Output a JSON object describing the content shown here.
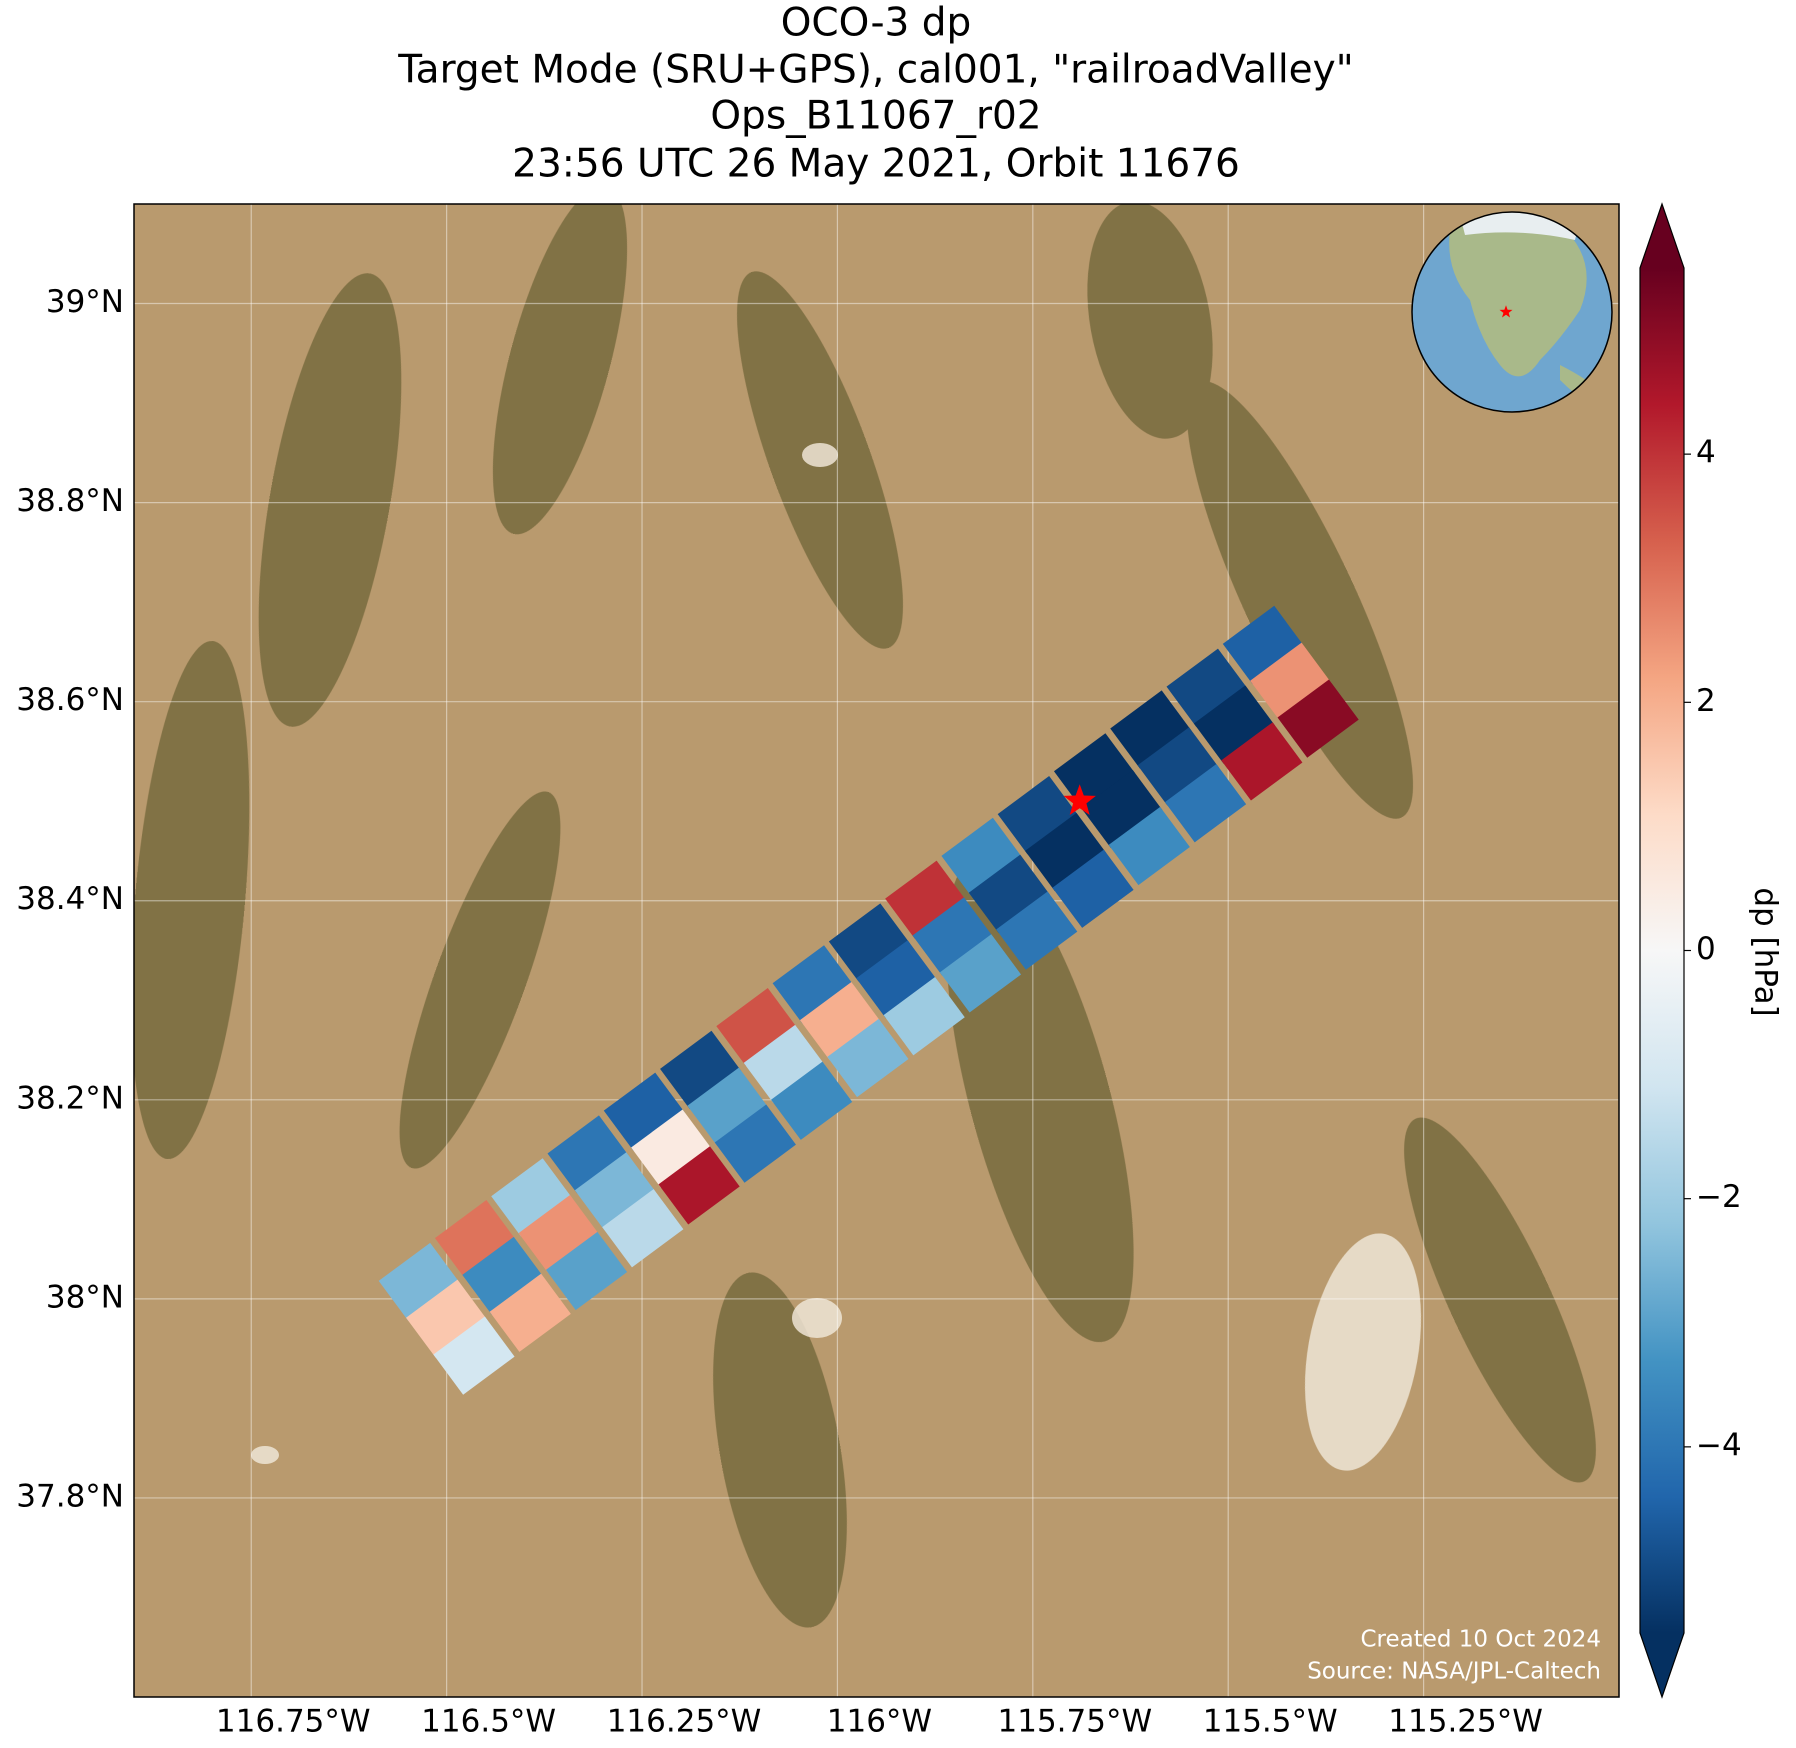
{
  "chart_data": {
    "type": "map",
    "title": [
      "OCO-3 dp",
      "Target Mode (SRU+GPS), cal001, \"railroadValley\"",
      "Ops_B11067_r02",
      "23:56 UTC 26 May 2021, Orbit 11676"
    ],
    "xlim": [
      -116.9,
      -115.0
    ],
    "ylim": [
      37.6,
      39.1
    ],
    "xticks": [
      {
        "value": -116.75,
        "label": "116.75°W"
      },
      {
        "value": -116.5,
        "label": "116.5°W"
      },
      {
        "value": -116.25,
        "label": "116.25°W"
      },
      {
        "value": -116,
        "label": "116°W"
      },
      {
        "value": -115.75,
        "label": "115.75°W"
      },
      {
        "value": -115.5,
        "label": "115.5°W"
      },
      {
        "value": -115.25,
        "label": "115.25°W"
      }
    ],
    "yticks": [
      {
        "value": 39,
        "label": "39°N"
      },
      {
        "value": 38.8,
        "label": "38.8°N"
      },
      {
        "value": 38.6,
        "label": "38.6°N"
      },
      {
        "value": 38.4,
        "label": "38.4°N"
      },
      {
        "value": 38.2,
        "label": "38.2°N"
      },
      {
        "value": 38,
        "label": "38°N"
      },
      {
        "value": 37.8,
        "label": "37.8°N"
      }
    ],
    "grid": true,
    "colormap": [
      "#053061",
      "#2166ac",
      "#4393c3",
      "#92c5de",
      "#d1e5f0",
      "#f7f7f7",
      "#fddbc7",
      "#f4a582",
      "#d6604d",
      "#b2182b",
      "#67001f"
    ],
    "clim": [
      -5.5,
      5.5
    ],
    "colorbar_label": "dp [hPa]",
    "colorbar_ticks": [
      {
        "value": -4,
        "label": "−4"
      },
      {
        "value": -2,
        "label": "−2"
      },
      0,
      2,
      4
    ],
    "site": {
      "lon": -115.69,
      "lat": 38.5,
      "color": "#ff0000"
    },
    "soundings": {
      "lon": [
        -116.535,
        -116.5,
        -116.465,
        -116.463,
        -116.428,
        -116.393,
        -116.391,
        -116.356,
        -116.321,
        -116.319,
        -116.284,
        -116.249,
        -116.247,
        -116.212,
        -116.177,
        -116.175,
        -116.14,
        -116.105,
        -116.103,
        -116.068,
        -116.033,
        -116.031,
        -115.996,
        -115.961,
        -115.959,
        -115.924,
        -115.889,
        -115.887,
        -115.852,
        -115.817,
        -115.815,
        -115.78,
        -115.745,
        -115.743,
        -115.708,
        -115.673,
        -115.671,
        -115.636,
        -115.601,
        -115.599,
        -115.564,
        -115.529,
        -115.527,
        -115.492,
        -115.457,
        -115.455,
        -115.42,
        -115.385
      ],
      "lat": [
        38.017,
        37.98,
        37.943,
        38.06,
        38.023,
        37.986,
        38.102,
        38.065,
        38.028,
        38.145,
        38.108,
        38.071,
        38.188,
        38.151,
        38.114,
        38.23,
        38.193,
        38.156,
        38.273,
        38.236,
        38.199,
        38.316,
        38.279,
        38.242,
        38.358,
        38.321,
        38.284,
        38.401,
        38.364,
        38.327,
        38.444,
        38.407,
        38.37,
        38.486,
        38.449,
        38.412,
        38.529,
        38.492,
        38.455,
        38.572,
        38.535,
        38.498,
        38.614,
        38.577,
        38.54,
        38.657,
        38.62,
        38.583
      ],
      "values": [
        -2.5,
        1.5,
        -1.0,
        3.0,
        -3.5,
        2.0,
        -2.0,
        2.5,
        -3.0,
        -4.0,
        -2.5,
        -1.5,
        -4.5,
        0.5,
        4.5,
        -5.0,
        -3.0,
        -4.0,
        3.5,
        -1.5,
        -3.5,
        -4.0,
        2.0,
        -2.5,
        -5.0,
        -4.5,
        -2.0,
        4.0,
        -4.0,
        -3.0,
        -3.5,
        -5.0,
        -4.0,
        -5.0,
        -5.5,
        -4.5,
        -5.5,
        -5.5,
        -3.5,
        -5.5,
        -5.0,
        -4.0,
        -5.0,
        -5.5,
        4.5,
        -4.5,
        2.5,
        5.0
      ]
    },
    "footer": [
      "Created 10 Oct 2024",
      "Source: NASA/JPL-Caltech"
    ]
  }
}
